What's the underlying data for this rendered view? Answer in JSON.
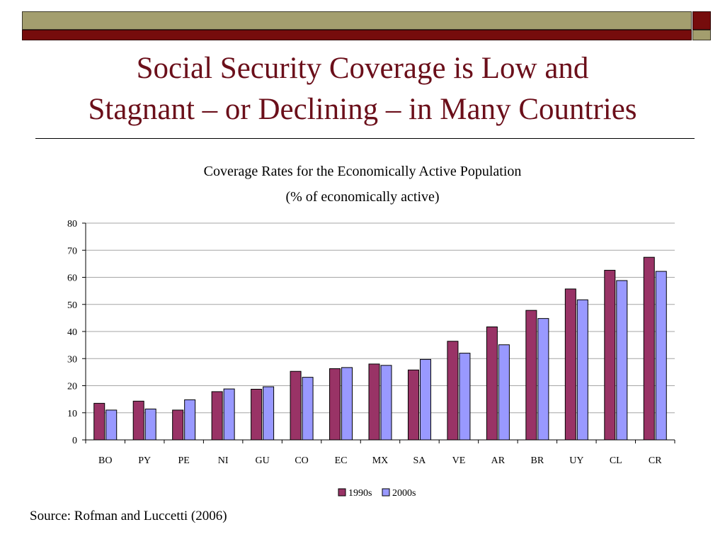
{
  "slide": {
    "title_lines": [
      "Social Security Coverage is Low and",
      "Stagnant – or Declining – in Many Countries"
    ],
    "source": "Source: Rofman and Luccetti (2006)"
  },
  "colors": {
    "title": "#6b0f1a",
    "band_olive": "#a39e6e",
    "band_maroon": "#760c0c",
    "series_1990s": "#993366",
    "series_2000s": "#9999ff"
  },
  "chart_data": {
    "type": "bar",
    "title": "Coverage Rates for the Economically Active Population",
    "subtitle": "(% of economically active)",
    "xlabel": "",
    "ylabel": "",
    "ylim": [
      0,
      80
    ],
    "yticks": [
      0,
      10,
      20,
      30,
      40,
      50,
      60,
      70,
      80
    ],
    "grid": true,
    "legend": "bottom-center",
    "categories": [
      "BO",
      "PY",
      "PE",
      "NI",
      "GU",
      "CO",
      "EC",
      "MX",
      "SA",
      "VE",
      "AR",
      "BR",
      "UY",
      "CL",
      "CR"
    ],
    "series": [
      {
        "name": "1990s",
        "color": "#993366",
        "values": [
          13.5,
          14.3,
          11.0,
          17.8,
          18.7,
          25.3,
          26.3,
          28.0,
          25.8,
          36.4,
          41.7,
          47.8,
          55.7,
          62.6,
          67.4
        ]
      },
      {
        "name": "2000s",
        "color": "#9999ff",
        "values": [
          11.0,
          11.4,
          14.8,
          18.8,
          19.6,
          23.1,
          26.7,
          27.5,
          29.7,
          32.0,
          35.1,
          44.8,
          51.7,
          58.8,
          62.2
        ]
      }
    ]
  }
}
